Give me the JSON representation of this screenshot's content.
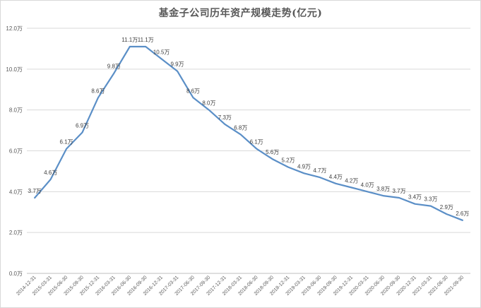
{
  "chart_data": {
    "type": "line",
    "title": "基金子公司历年资产规模走势(亿元)",
    "xlabel": "",
    "ylabel": "",
    "ylim": [
      0,
      12
    ],
    "yticks": [
      "0.0万",
      "2.0万",
      "4.0万",
      "6.0万",
      "8.0万",
      "10.0万",
      "12.0万"
    ],
    "grid": true,
    "legend": "none",
    "line_color": "#5b8fc7",
    "categories": [
      "2014-12-31",
      "2015-03-31",
      "2015-06-30",
      "2015-09-30",
      "2015-12-31",
      "2016-03-31",
      "2016-06-30",
      "2016-09-30",
      "2016-12-31",
      "2017-03-31",
      "2017-06-30",
      "2017-09-30",
      "2017-12-31",
      "2018-03-31",
      "2018-06-30",
      "2018-09-30",
      "2018-12-31",
      "2019-03-31",
      "2019-06-30",
      "2019-09-30",
      "2019-12-31",
      "2020-03-31",
      "2020-06-30",
      "2020-09-30",
      "2020-12-31",
      "2021-03-31",
      "2021-06-30",
      "2021-09-30"
    ],
    "series": [
      {
        "values": [
          3.7,
          4.6,
          6.1,
          6.9,
          8.6,
          9.8,
          11.1,
          11.1,
          10.5,
          9.9,
          8.6,
          8.0,
          7.3,
          6.8,
          6.1,
          5.6,
          5.2,
          4.9,
          4.7,
          4.4,
          4.2,
          4.0,
          3.8,
          3.7,
          3.4,
          3.3,
          2.9,
          2.6
        ],
        "labels": [
          "3.7万",
          "4.6万",
          "6.1万",
          "6.9万",
          "8.6万",
          "9.8万",
          "11.1万",
          "11.1万",
          "10.5万",
          "9.9万",
          "8.6万",
          "8.0万",
          "7.3万",
          "6.8万",
          "6.1万",
          "5.6万",
          "5.2万",
          "4.9万",
          "4.7万",
          "4.4万",
          "4.2万",
          "4.0万",
          "3.8万",
          "3.7万",
          "3.4万",
          "3.3万",
          "2.9万",
          "2.6万"
        ]
      }
    ]
  }
}
